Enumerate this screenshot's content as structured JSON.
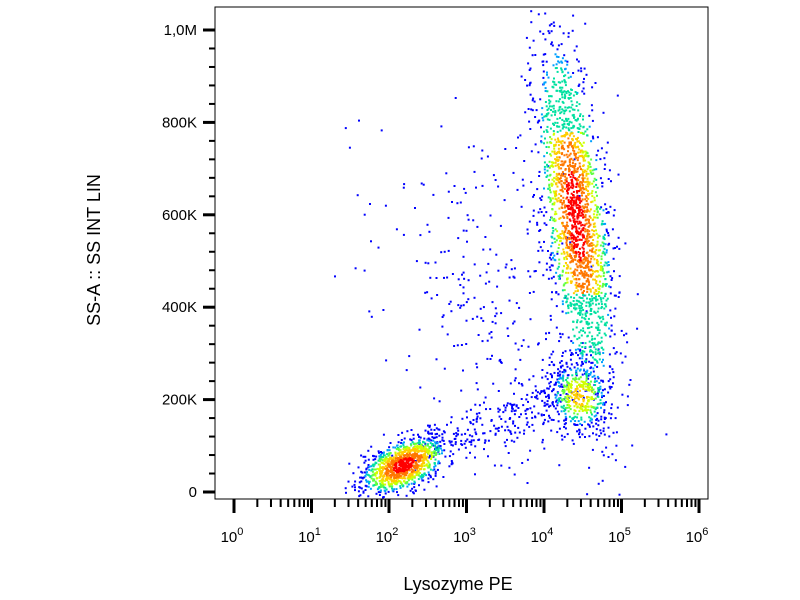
{
  "chart_data": {
    "type": "scatter",
    "plot_style": "flow-cytometry density dot plot",
    "xlabel": "Lysozyme PE",
    "ylabel": "SS-A :: SS INT LIN",
    "x_scale": "log",
    "y_scale": "linear",
    "xlim": [
      1,
      1000000
    ],
    "ylim": [
      0,
      1000000
    ],
    "x_ticks": [
      {
        "base": "10",
        "exp": "0",
        "value": 1
      },
      {
        "base": "10",
        "exp": "1",
        "value": 10
      },
      {
        "base": "10",
        "exp": "2",
        "value": 100
      },
      {
        "base": "10",
        "exp": "3",
        "value": 1000
      },
      {
        "base": "10",
        "exp": "4",
        "value": 10000
      },
      {
        "base": "10",
        "exp": "5",
        "value": 100000
      },
      {
        "base": "10",
        "exp": "6",
        "value": 1000000
      }
    ],
    "y_ticks": [
      {
        "label": "0",
        "value": 0
      },
      {
        "label": "200K",
        "value": 200000
      },
      {
        "label": "400K",
        "value": 400000
      },
      {
        "label": "600K",
        "value": 600000
      },
      {
        "label": "800K",
        "value": 800000
      },
      {
        "label": "1,0M",
        "value": 1000000
      }
    ],
    "grid": false,
    "legend": "none",
    "density_colors": [
      "#0000ff",
      "#00a0ff",
      "#00e0a0",
      "#60ff40",
      "#d0ff00",
      "#ffcc00",
      "#ff7700",
      "#ff0000"
    ],
    "populations": [
      {
        "center_x": 150,
        "center_y": 60000,
        "n_events": 1100,
        "density": "high"
      },
      {
        "center_x": 25000,
        "center_y": 600000,
        "n_events": 2000,
        "density": "high"
      },
      {
        "center_x": 28000,
        "center_y": 210000,
        "n_events": 450,
        "density": "medium"
      },
      {
        "center_x": 3000,
        "center_y": 350000,
        "n_events": 350,
        "density": "sparse"
      }
    ]
  }
}
